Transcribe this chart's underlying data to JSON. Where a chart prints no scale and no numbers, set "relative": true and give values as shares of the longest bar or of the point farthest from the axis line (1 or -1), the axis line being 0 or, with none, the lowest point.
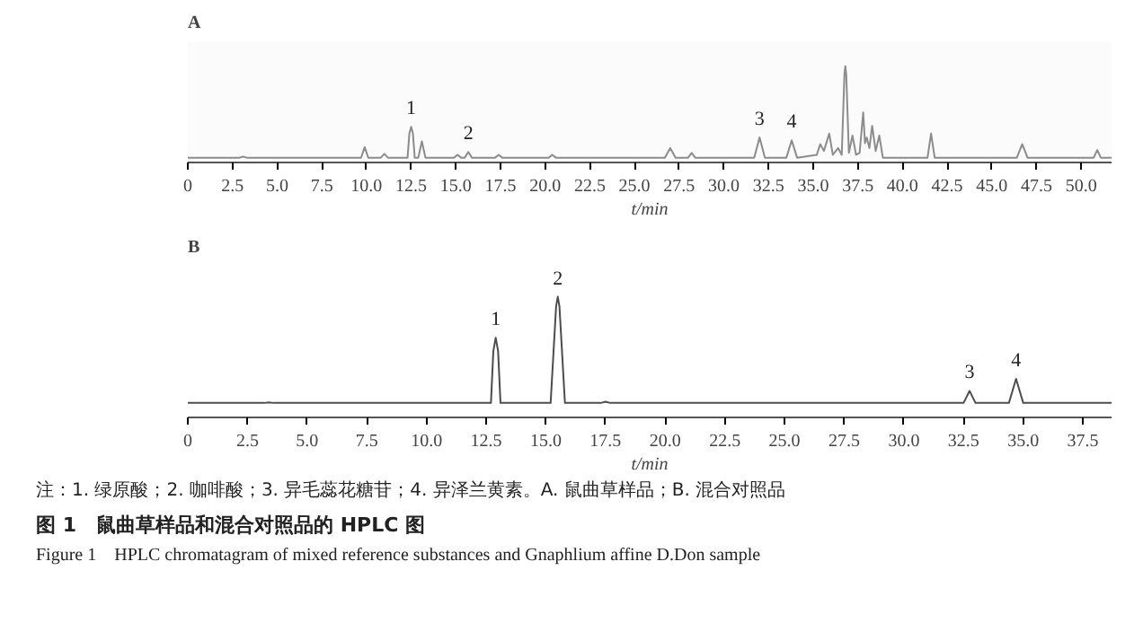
{
  "chart_data": [
    {
      "type": "line",
      "title": "A",
      "xlabel": "t/min",
      "relative": true,
      "xlim": [
        0,
        51.7
      ],
      "xticks": [
        0,
        2.5,
        {
          "value": 5,
          "label": "5.0"
        },
        7.5,
        {
          "value": 10,
          "label": "10.0"
        },
        12.5,
        {
          "value": 15,
          "label": "15.0"
        },
        17.5,
        {
          "value": 20,
          "label": "20.0"
        },
        22.5,
        {
          "value": 25,
          "label": "25.0"
        },
        27.5,
        {
          "value": 30,
          "label": "30.0"
        },
        32.5,
        {
          "value": 35,
          "label": "35.0"
        },
        37.5,
        {
          "value": 40,
          "label": "40.0"
        },
        42.5,
        {
          "value": 45,
          "label": "45.0"
        },
        47.5,
        {
          "value": 50,
          "label": "50.0"
        }
      ],
      "grid": false,
      "line_style": "solid",
      "marker": "none",
      "series": [
        {
          "color": "#8c8c8c",
          "x": [
            0,
            2.9,
            3.1,
            3.3,
            9.7,
            9.9,
            10.1,
            10.8,
            11.0,
            11.2,
            12.3,
            12.4,
            12.5,
            12.6,
            12.7,
            12.9,
            13.1,
            13.3,
            14.9,
            15.1,
            15.3,
            15.5,
            15.7,
            15.9,
            17.2,
            17.4,
            17.6,
            20.2,
            20.4,
            20.6,
            26.7,
            27.0,
            27.3,
            28.0,
            28.2,
            28.4,
            31.7,
            32.0,
            32.3,
            33.5,
            33.8,
            34.1,
            35.2,
            35.4,
            35.6,
            35.9,
            36.1,
            36.4,
            36.6,
            36.75,
            36.8,
            36.85,
            37.0,
            37.2,
            37.4,
            37.6,
            37.8,
            37.9,
            38.0,
            38.15,
            38.3,
            38.5,
            38.7,
            38.9,
            41.4,
            41.6,
            41.8,
            46.4,
            46.7,
            47.0,
            50.7,
            50.9,
            51.1,
            51.7
          ],
          "values": [
            0.05,
            0.05,
            0.06,
            0.05,
            0.05,
            0.16,
            0.05,
            0.05,
            0.09,
            0.05,
            0.05,
            0.3,
            0.37,
            0.3,
            0.05,
            0.05,
            0.22,
            0.05,
            0.05,
            0.08,
            0.05,
            0.05,
            0.11,
            0.05,
            0.05,
            0.08,
            0.05,
            0.05,
            0.08,
            0.05,
            0.05,
            0.15,
            0.05,
            0.05,
            0.1,
            0.05,
            0.05,
            0.26,
            0.05,
            0.05,
            0.23,
            0.05,
            0.08,
            0.19,
            0.12,
            0.3,
            0.08,
            0.15,
            0.08,
            0.92,
            1.0,
            0.92,
            0.1,
            0.28,
            0.08,
            0.1,
            0.52,
            0.2,
            0.26,
            0.15,
            0.38,
            0.12,
            0.28,
            0.05,
            0.05,
            0.3,
            0.05,
            0.05,
            0.19,
            0.05,
            0.05,
            0.13,
            0.05,
            0.05
          ]
        }
      ],
      "annotations": [
        {
          "text": "1",
          "x": 12.5,
          "y": 0.37
        },
        {
          "text": "2",
          "x": 15.7,
          "y": 0.11
        },
        {
          "text": "3",
          "x": 32.0,
          "y": 0.26
        },
        {
          "text": "4",
          "x": 33.8,
          "y": 0.23
        }
      ]
    },
    {
      "type": "line",
      "title": "B",
      "xlabel": "t/min",
      "relative": true,
      "xlim": [
        0,
        38.7
      ],
      "xticks": [
        0,
        2.5,
        {
          "value": 5,
          "label": "5.0"
        },
        7.5,
        {
          "value": 10,
          "label": "10.0"
        },
        12.5,
        {
          "value": 15,
          "label": "15.0"
        },
        17.5,
        {
          "value": 20,
          "label": "20.0"
        },
        22.5,
        {
          "value": 25,
          "label": "25.0"
        },
        27.5,
        {
          "value": 30,
          "label": "30.0"
        },
        32.5,
        {
          "value": 35,
          "label": "35.0"
        },
        37.5
      ],
      "grid": false,
      "line_style": "solid",
      "marker": "none",
      "series": [
        {
          "color": "#4d4d4d",
          "x": [
            0,
            3.2,
            3.4,
            3.6,
            12.7,
            12.8,
            12.9,
            13.0,
            13.1,
            15.2,
            15.43,
            15.5,
            15.57,
            15.8,
            17.3,
            17.5,
            17.7,
            32.5,
            32.75,
            33.0,
            34.4,
            34.7,
            35.0,
            38.7
          ],
          "values": [
            0.12,
            0.12,
            0.125,
            0.12,
            0.12,
            0.55,
            0.66,
            0.55,
            0.12,
            0.12,
            0.92,
            1.0,
            0.92,
            0.12,
            0.12,
            0.13,
            0.12,
            0.12,
            0.22,
            0.12,
            0.12,
            0.32,
            0.12,
            0.12
          ]
        }
      ],
      "annotations": [
        {
          "text": "1",
          "x": 12.9,
          "y": 0.66
        },
        {
          "text": "2",
          "x": 15.5,
          "y": 1.0
        },
        {
          "text": "3",
          "x": 32.75,
          "y": 0.22
        },
        {
          "text": "4",
          "x": 34.7,
          "y": 0.32
        },
        "注：1. 绿原酸；2. 咖啡酸；3. 异毛蕊花糖苷；4. 异泽兰黄素。A. 鼠曲草样品；B. 混合对照品",
        "图 1　鼠曲草样品和混合对照品的 HPLC 图",
        "Figure 1　HPLC chromatagram of mixed reference substances and Gnaphlium affine D.Don sample"
      ]
    }
  ]
}
